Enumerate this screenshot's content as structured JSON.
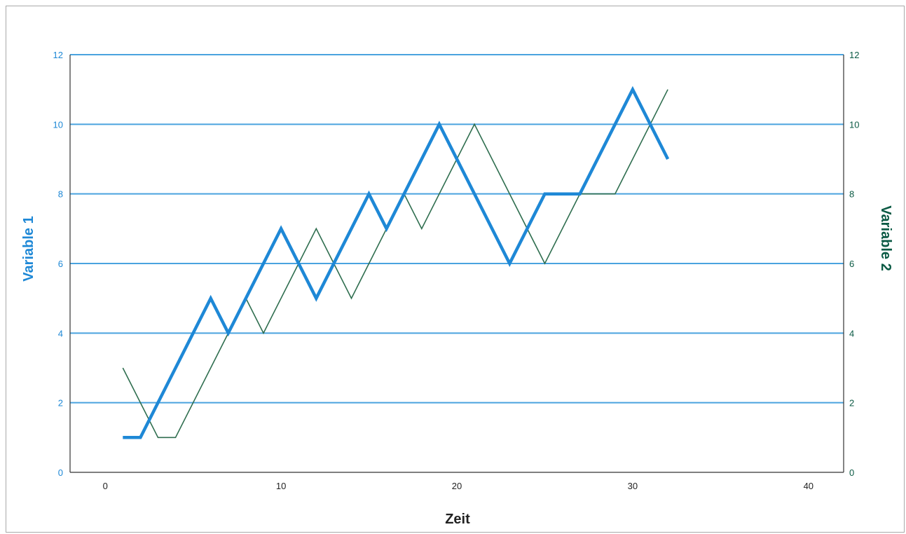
{
  "chart_data": {
    "type": "line",
    "xlabel": "Zeit",
    "ylabel_left": "Variable 1",
    "ylabel_right": "Variable 2",
    "xlim": [
      -2,
      42
    ],
    "ylim": [
      0,
      12
    ],
    "x_ticks": [
      0,
      10,
      20,
      30,
      40
    ],
    "y_ticks": [
      0,
      2,
      4,
      6,
      8,
      10,
      12
    ],
    "grid": "horizontal",
    "colors": {
      "variable1": "#1e88d6",
      "variable2": "#2f6e4f",
      "left_axis": "#1e88d6",
      "right_axis": "#0b5a44",
      "grid": "#4aa3df",
      "frame": "#333333"
    },
    "series": [
      {
        "axis": "left",
        "points": [
          [
            1,
            1
          ],
          [
            2,
            1
          ],
          [
            6,
            5
          ],
          [
            7,
            4
          ],
          [
            10,
            7
          ],
          [
            12,
            5
          ],
          [
            15,
            8
          ],
          [
            16,
            7
          ],
          [
            19,
            10
          ],
          [
            23,
            6
          ],
          [
            25,
            8
          ],
          [
            27,
            8
          ],
          [
            30,
            11
          ],
          [
            32,
            9
          ]
        ]
      },
      {
        "axis": "right",
        "points": [
          [
            1,
            3
          ],
          [
            3,
            1
          ],
          [
            4,
            1
          ],
          [
            8,
            5
          ],
          [
            9,
            4
          ],
          [
            12,
            7
          ],
          [
            14,
            5
          ],
          [
            17,
            8
          ],
          [
            18,
            7
          ],
          [
            21,
            10
          ],
          [
            25,
            6
          ],
          [
            27,
            8
          ],
          [
            29,
            8
          ],
          [
            32,
            11
          ]
        ]
      }
    ]
  }
}
